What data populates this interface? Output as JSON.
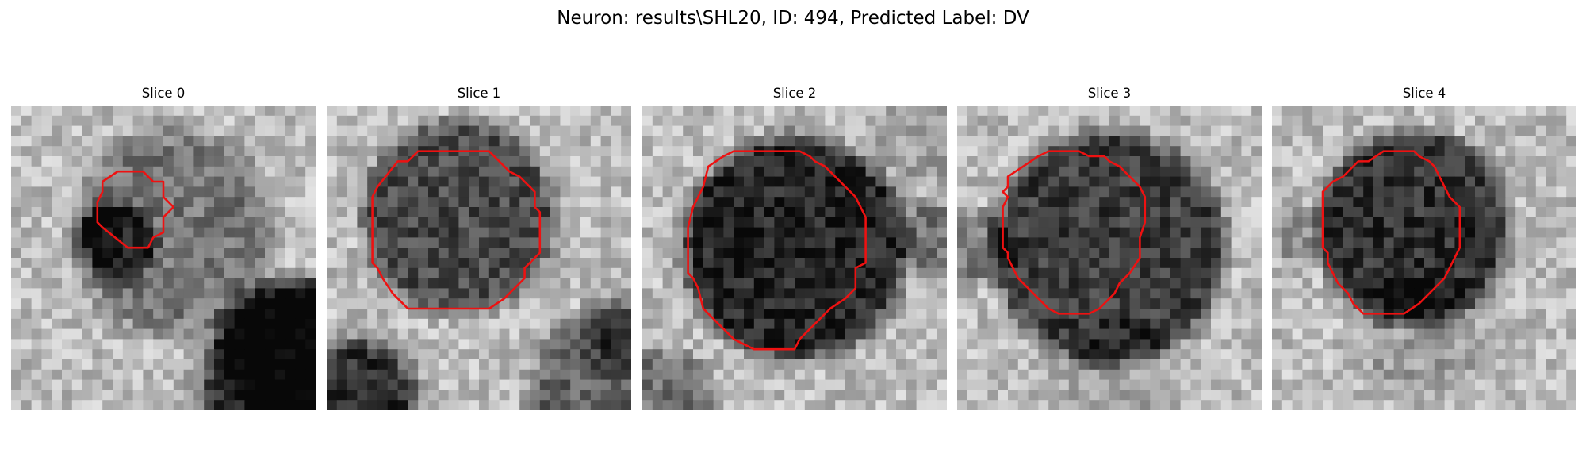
{
  "figure": {
    "title": "Neuron: results\\SHL20, ID: 494, Predicted Label: DV"
  },
  "slices": [
    {
      "label": "Slice 0"
    },
    {
      "label": "Slice 1"
    },
    {
      "label": "Slice 2"
    },
    {
      "label": "Slice 3"
    },
    {
      "label": "Slice 4"
    }
  ],
  "colors": {
    "contour": "#ee1111",
    "colormap": "gray"
  }
}
